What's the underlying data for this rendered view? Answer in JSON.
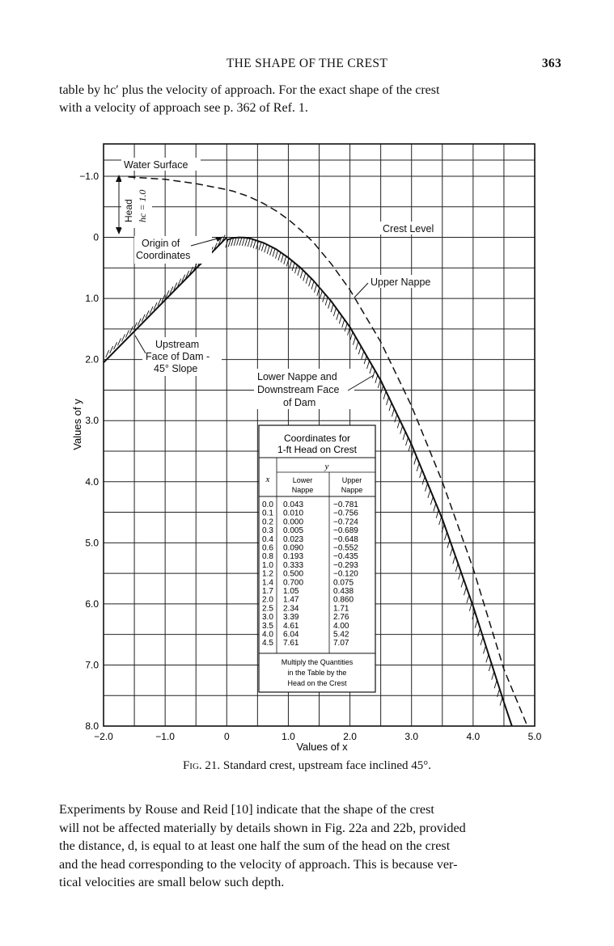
{
  "header": {
    "title": "THE SHAPE OF THE CREST",
    "page": "363"
  },
  "intro_lines": [
    "table by hc′ plus the velocity of approach.  For the exact shape of the crest",
    "with a velocity of approach see p. 362 of Ref. 1."
  ],
  "figure": {
    "caption_label": "Fig. 21.",
    "caption_text": "Standard crest, upstream face inclined 45°.",
    "xlabel": "Values of x",
    "ylabel": "Values of y",
    "x_ticks": [
      "−2.0",
      "−1.0",
      "0",
      "1.0",
      "2.0",
      "3.0",
      "4.0",
      "5.0"
    ],
    "y_ticks": [
      "−1.0",
      "0",
      "1.0",
      "2.0",
      "3.0",
      "4.0",
      "5.0",
      "6.0",
      "7.0",
      "8.0"
    ],
    "annotations": {
      "water_surface": "Water Surface",
      "head": "Head",
      "head_value": "hc = 1.0",
      "crest_level": "Crest Level",
      "origin_1": "Origin of",
      "origin_2": "Coordinates",
      "upper_nappe": "Upper Nappe",
      "upstream_1": "Upstream",
      "upstream_2": "Face of Dam -",
      "upstream_3": "45° Slope",
      "lower_1": "Lower Nappe and",
      "lower_2": "Downstream Face",
      "lower_3": "of Dam"
    },
    "table": {
      "title_1": "Coordinates for",
      "title_2": "1-ft Head on Crest",
      "col_x": "x",
      "col_y": "y",
      "col_lower_1": "Lower",
      "col_lower_2": "Nappe",
      "col_upper_1": "Upper",
      "col_upper_2": "Nappe",
      "rows": [
        [
          "0.0",
          "0.043",
          "−0.781"
        ],
        [
          "0.1",
          "0.010",
          "−0.756"
        ],
        [
          "0.2",
          "0.000",
          "−0.724"
        ],
        [
          "0.3",
          "0.005",
          "−0.689"
        ],
        [
          "0.4",
          "0.023",
          "−0.648"
        ],
        [
          "0.6",
          "0.090",
          "−0.552"
        ],
        [
          "0.8",
          "0.193",
          "−0.435"
        ],
        [
          "1.0",
          "0.333",
          "−0.293"
        ],
        [
          "1.2",
          "0.500",
          "−0.120"
        ],
        [
          "1.4",
          "0.700",
          "0.075"
        ],
        [
          "1.7",
          "1.05",
          "0.438"
        ],
        [
          "2.0",
          "1.47",
          "0.860"
        ],
        [
          "2.5",
          "2.34",
          "1.71"
        ],
        [
          "3.0",
          "3.39",
          "2.76"
        ],
        [
          "3.5",
          "4.61",
          "4.00"
        ],
        [
          "4.0",
          "6.04",
          "5.42"
        ],
        [
          "4.5",
          "7.61",
          "7.07"
        ]
      ],
      "note_1": "Multiply the Quantities",
      "note_2": "in the Table by the",
      "note_3": "Head on the Crest"
    }
  },
  "chart_data": {
    "type": "line",
    "xlabel": "Values of x",
    "ylabel": "Values of y",
    "xlim": [
      -2.0,
      5.0
    ],
    "ylim": [
      -1.0,
      8.0
    ],
    "y_inverted": true,
    "grid": true,
    "x": [
      0.0,
      0.1,
      0.2,
      0.3,
      0.4,
      0.6,
      0.8,
      1.0,
      1.2,
      1.4,
      1.7,
      2.0,
      2.5,
      3.0,
      3.5,
      4.0,
      4.5
    ],
    "series": [
      {
        "name": "Lower Nappe",
        "values": [
          0.043,
          0.01,
          0.0,
          0.005,
          0.023,
          0.09,
          0.193,
          0.333,
          0.5,
          0.7,
          1.05,
          1.47,
          2.34,
          3.39,
          4.61,
          6.04,
          7.61
        ]
      },
      {
        "name": "Upper Nappe",
        "values": [
          -0.781,
          -0.756,
          -0.724,
          -0.689,
          -0.648,
          -0.552,
          -0.435,
          -0.293,
          -0.12,
          0.075,
          0.438,
          0.86,
          1.71,
          2.76,
          4.0,
          5.42,
          7.07
        ]
      }
    ],
    "upstream_face_slope_deg": 45
  },
  "body_lines": [
    "Experiments by Rouse and Reid [10] indicate that the shape of the crest",
    "will not be affected materially by details shown in Fig. 22a and 22b, provided",
    "the distance, d, is equal to at least one half the sum of the head on the crest",
    "and the head corresponding to the velocity of approach.  This is because ver-",
    "tical velocities are small below such depth."
  ]
}
